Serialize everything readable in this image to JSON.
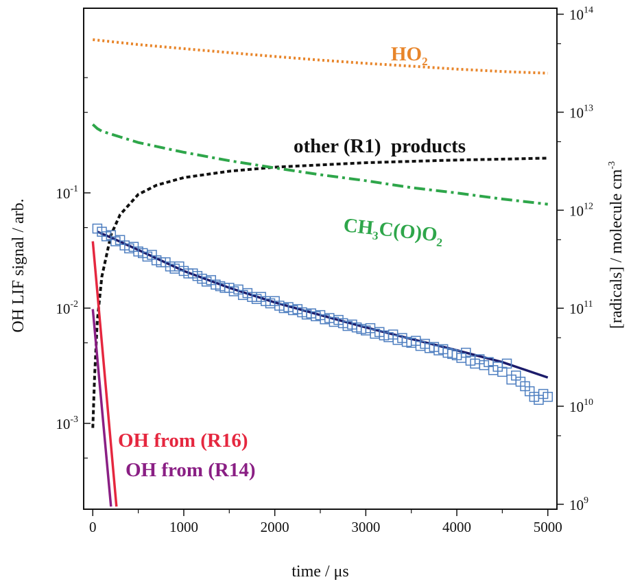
{
  "chart_data": {
    "type": "scatter",
    "title": "",
    "xlabel": "time / μs",
    "ylabel_left": "OH LIF signal / arb.",
    "ylabel_right": {
      "main": "[radicals] /  molecule cm",
      "sup": "-3"
    },
    "x_axis": {
      "range": [
        -100,
        5100
      ],
      "ticks": [
        "0",
        "1000",
        "2000",
        "3000",
        "4000",
        "5000"
      ],
      "tick_values": [
        0,
        1000,
        2000,
        3000,
        4000,
        5000
      ],
      "scale": "linear"
    },
    "y_left": {
      "scale": "log",
      "range": [
        0.00018,
        4.0
      ],
      "tick_labels": [
        {
          "base": "10",
          "exp": "-1",
          "value": 0.1
        },
        {
          "base": "10",
          "exp": "-2",
          "value": 0.01
        },
        {
          "base": "10",
          "exp": "-3",
          "value": 0.001
        }
      ],
      "minor_ticks": [
        1.0,
        0.5,
        0.05,
        0.005,
        0.0005
      ]
    },
    "y_right": {
      "scale": "log",
      "range": [
        890000000.0,
        115000000000000.0
      ],
      "tick_labels": [
        {
          "base": "10",
          "exp": "14",
          "value": 100000000000000.0
        },
        {
          "base": "10",
          "exp": "13",
          "value": 10000000000000.0
        },
        {
          "base": "10",
          "exp": "12",
          "value": 1000000000000.0
        },
        {
          "base": "10",
          "exp": "11",
          "value": 100000000000.0
        },
        {
          "base": "10",
          "exp": "10",
          "value": 10000000000.0
        },
        {
          "base": "10",
          "exp": "9",
          "value": 1000000000.0
        }
      ],
      "minor_ticks": [
        50000000000000.0,
        5000000000000.0,
        500000000000.0,
        50000000000.0,
        5000000000.0
      ]
    },
    "grid": false,
    "legend": "none (labels placed beside curves)",
    "series": [
      {
        "name": "HO2",
        "label": {
          "main": "HO",
          "sub": "2"
        },
        "axis": "right",
        "style": "dotted",
        "color": "#e8852a",
        "x": [
          0,
          500,
          1000,
          1500,
          2000,
          2500,
          3000,
          3500,
          4000,
          4500,
          5000
        ],
        "y": [
          55000000000000.0,
          49000000000000.0,
          44500000000000.0,
          40500000000000.0,
          37000000000000.0,
          34000000000000.0,
          31500000000000.0,
          29500000000000.0,
          27500000000000.0,
          26000000000000.0,
          25000000000000.0
        ]
      },
      {
        "name": "other (R1)  products",
        "label": {
          "main": "other (R1)  products"
        },
        "axis": "right",
        "style": "dashed",
        "color": "#111111",
        "x": [
          0,
          20,
          50,
          100,
          200,
          300,
          500,
          700,
          1000,
          1500,
          2000,
          2500,
          3000,
          3500,
          4000,
          4500,
          5000
        ],
        "y": [
          6000000000.0,
          20000000000.0,
          75000000000.0,
          210000000000.0,
          560000000000.0,
          900000000000.0,
          1450000000000.0,
          1800000000000.0,
          2150000000000.0,
          2500000000000.0,
          2750000000000.0,
          2900000000000.0,
          3050000000000.0,
          3150000000000.0,
          3250000000000.0,
          3320000000000.0,
          3400000000000.0
        ]
      },
      {
        "name": "CH3C(O)O2",
        "label": {
          "p1": "CH",
          "s1": "3",
          "p2": "C(O)O",
          "s2": "2"
        },
        "axis": "right",
        "style": "dashdot",
        "color": "#2ea64a",
        "x": [
          0,
          50,
          100,
          300,
          500,
          1000,
          1500,
          2000,
          2500,
          3000,
          3500,
          4000,
          4500,
          5000
        ],
        "y": [
          7500000000000.0,
          6800000000000.0,
          6400000000000.0,
          5600000000000.0,
          4900000000000.0,
          3900000000000.0,
          3200000000000.0,
          2700000000000.0,
          2300000000000.0,
          2000000000000.0,
          1700000000000.0,
          1500000000000.0,
          1300000000000.0,
          1150000000000.0
        ]
      },
      {
        "name": "OH from (R16)",
        "label": {
          "main": "OH from (R16)"
        },
        "axis": "left",
        "style": "solid",
        "color": "#e5273f",
        "x": [
          0,
          260
        ],
        "y": [
          0.038,
          0.00019
        ]
      },
      {
        "name": "OH from (R14)",
        "label": {
          "main": "OH from (R14)"
        },
        "axis": "left",
        "style": "solid",
        "color": "#8a1f84",
        "x": [
          0,
          200
        ],
        "y": [
          0.0098,
          0.00019
        ]
      },
      {
        "name": "fit",
        "axis": "left",
        "style": "solid",
        "color": "#1c1c6b",
        "x": [
          50,
          200,
          500,
          1000,
          1500,
          2000,
          2500,
          3000,
          3500,
          4000,
          4500,
          5000
        ],
        "y": [
          0.046,
          0.041,
          0.032,
          0.021,
          0.015,
          0.0112,
          0.0087,
          0.0068,
          0.0054,
          0.0043,
          0.0034,
          0.0025
        ]
      },
      {
        "name": "OH data",
        "axis": "left",
        "style": "markers",
        "marker": "open-square",
        "color": "#4f7fc0",
        "x": [
          50,
          100,
          150,
          200,
          250,
          300,
          350,
          400,
          450,
          500,
          550,
          600,
          650,
          700,
          750,
          800,
          850,
          900,
          950,
          1000,
          1050,
          1100,
          1150,
          1200,
          1250,
          1300,
          1350,
          1400,
          1450,
          1500,
          1550,
          1600,
          1650,
          1700,
          1750,
          1800,
          1850,
          1900,
          1950,
          2000,
          2050,
          2100,
          2150,
          2200,
          2250,
          2300,
          2350,
          2400,
          2450,
          2500,
          2550,
          2600,
          2650,
          2700,
          2750,
          2800,
          2850,
          2900,
          2950,
          3000,
          3050,
          3100,
          3150,
          3200,
          3250,
          3300,
          3350,
          3400,
          3450,
          3500,
          3550,
          3600,
          3650,
          3700,
          3750,
          3800,
          3850,
          3900,
          3950,
          4000,
          4050,
          4100,
          4150,
          4200,
          4250,
          4300,
          4350,
          4400,
          4450,
          4500,
          4550,
          4600,
          4650,
          4700,
          4750,
          4800,
          4850,
          4900,
          4950,
          5000
        ],
        "y": [
          0.049,
          0.046,
          0.042,
          0.043,
          0.038,
          0.039,
          0.035,
          0.033,
          0.034,
          0.031,
          0.03,
          0.028,
          0.029,
          0.026,
          0.025,
          0.025,
          0.023,
          0.022,
          0.023,
          0.021,
          0.02,
          0.02,
          0.019,
          0.018,
          0.017,
          0.0175,
          0.016,
          0.0155,
          0.015,
          0.015,
          0.014,
          0.0145,
          0.013,
          0.0135,
          0.0125,
          0.012,
          0.0125,
          0.0115,
          0.011,
          0.0115,
          0.0105,
          0.01,
          0.0102,
          0.0096,
          0.0098,
          0.0092,
          0.0088,
          0.009,
          0.0085,
          0.0087,
          0.008,
          0.0082,
          0.0076,
          0.0079,
          0.0074,
          0.007,
          0.0072,
          0.0068,
          0.0066,
          0.0064,
          0.0067,
          0.006,
          0.0062,
          0.0058,
          0.0056,
          0.0059,
          0.0053,
          0.0055,
          0.0051,
          0.005,
          0.0052,
          0.0047,
          0.0049,
          0.0045,
          0.0046,
          0.0043,
          0.0044,
          0.0041,
          0.004,
          0.0039,
          0.0037,
          0.0041,
          0.0035,
          0.0033,
          0.0036,
          0.0032,
          0.0034,
          0.0029,
          0.0031,
          0.0028,
          0.0033,
          0.0024,
          0.0026,
          0.0023,
          0.0021,
          0.0019,
          0.0017,
          0.0016,
          0.0018,
          0.0017
        ]
      }
    ]
  }
}
